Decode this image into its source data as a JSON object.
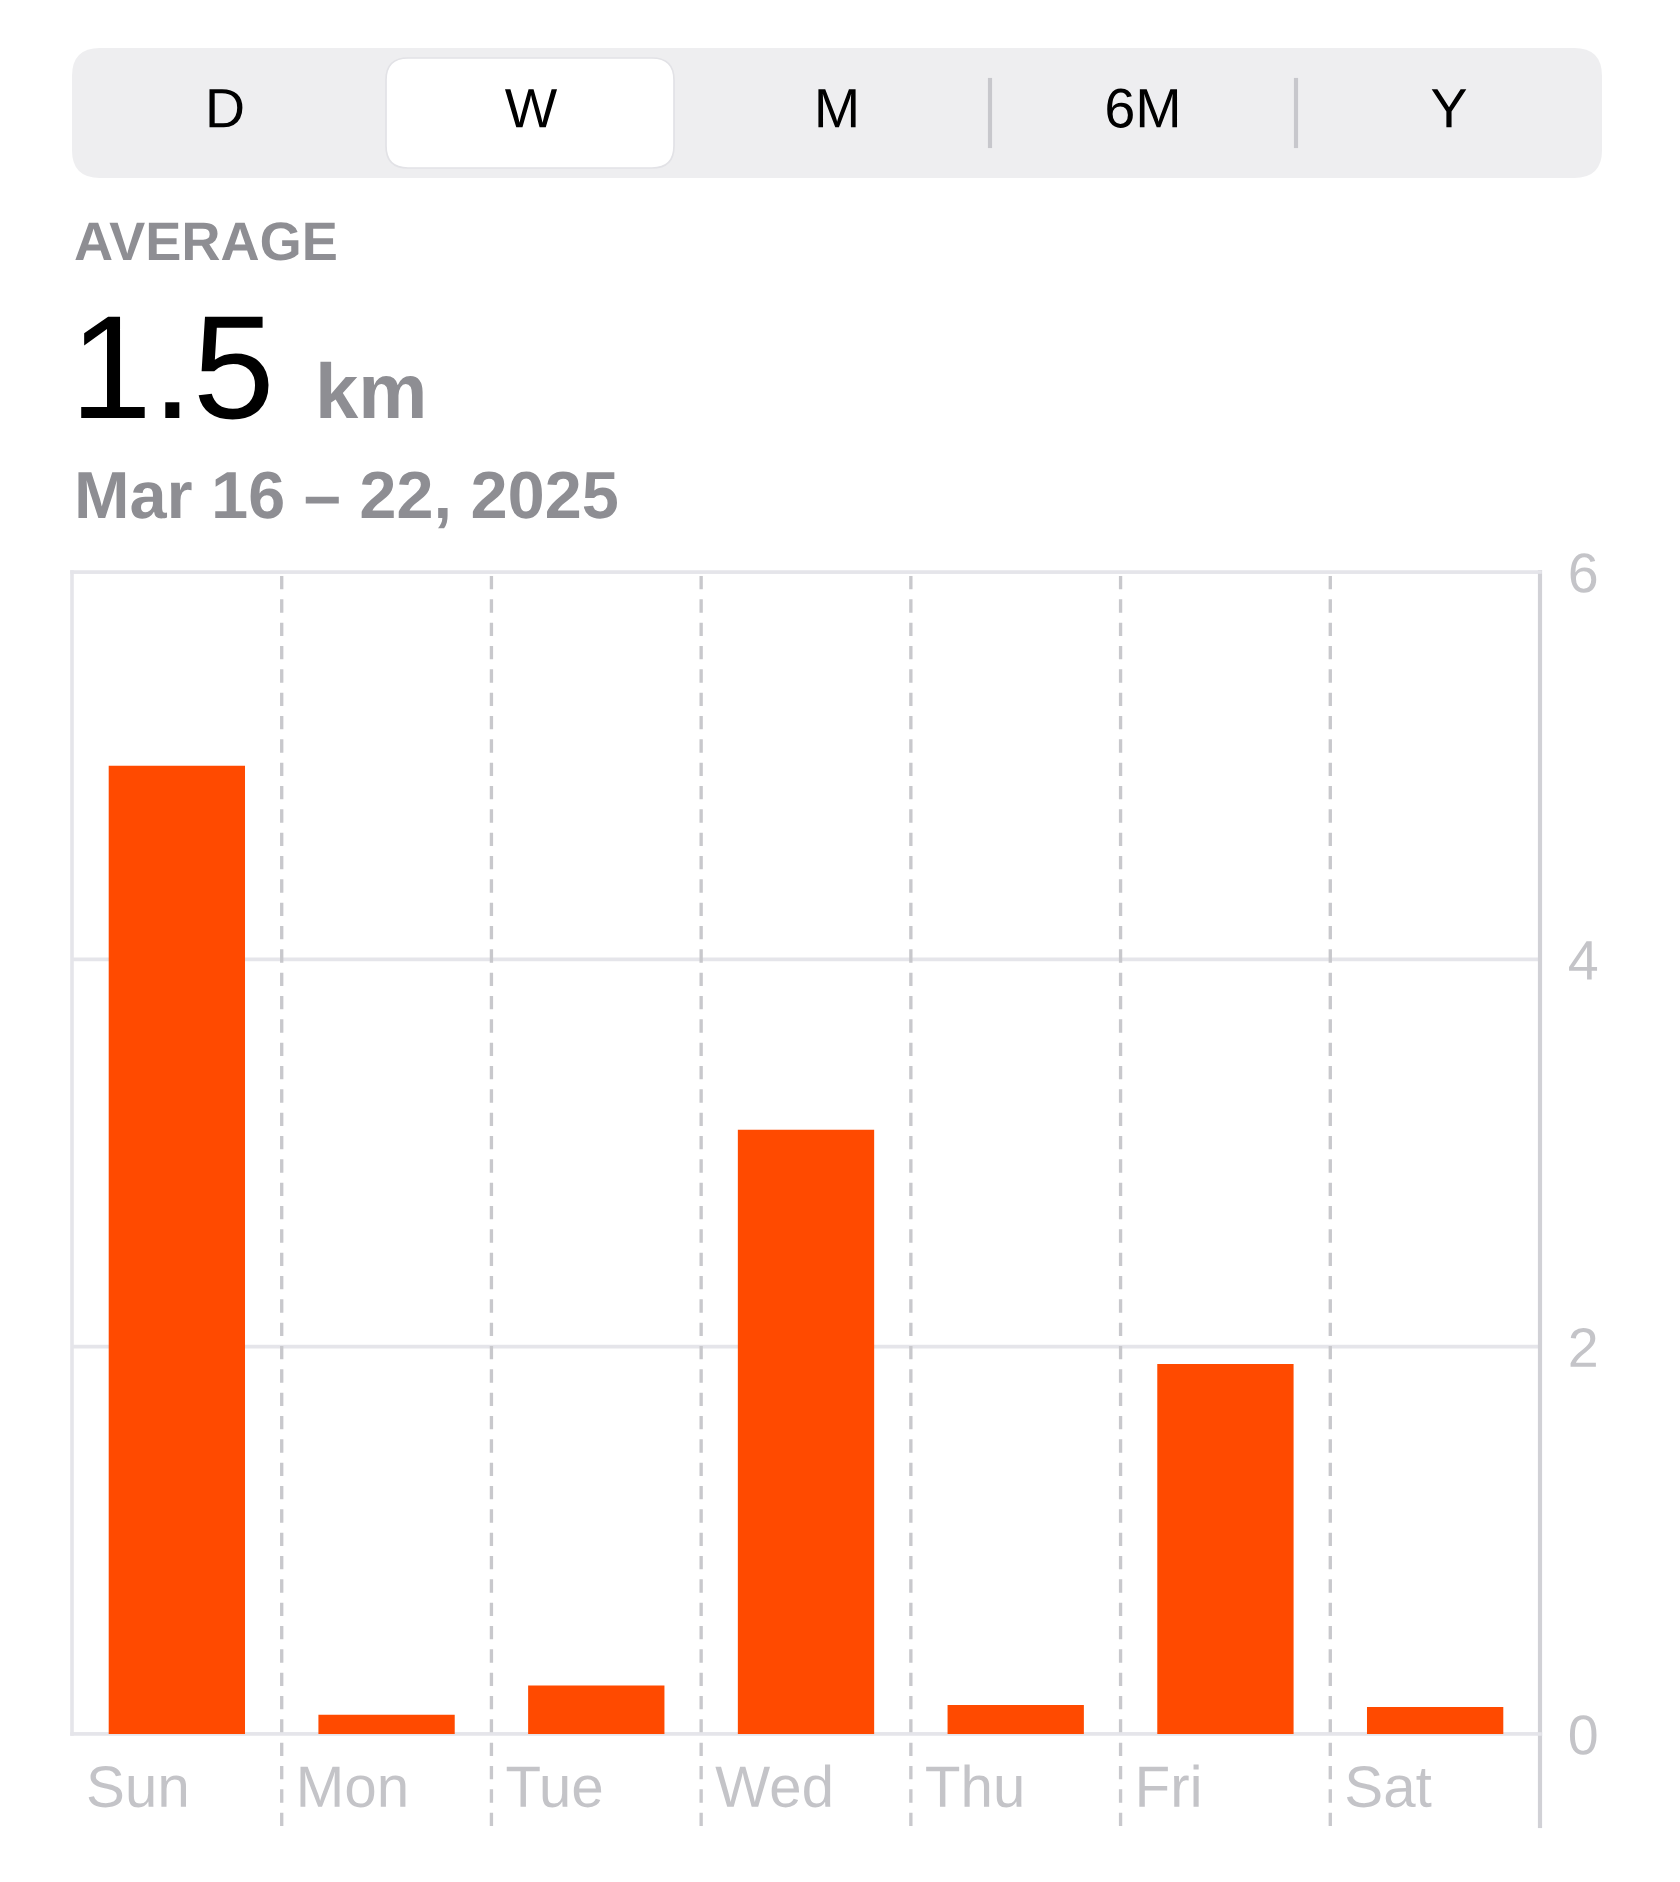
{
  "chart_data": [
    {
      "type": "other",
      "annotations": [
        "D",
        "W",
        "M",
        "6M",
        "Y"
      ]
    },
    {
      "type": "bar",
      "annotations": [
        "AVERAGE"
      ],
      "title": "1.5 km",
      "subtitle": "Mar 16 – 22, 2025",
      "categories": [
        "Sun",
        "Mon",
        "Tue",
        "Wed",
        "Thu",
        "Fri",
        "Sat"
      ],
      "values": [
        5.0,
        0.1,
        0.25,
        3.12,
        0.15,
        1.91,
        0.14
      ],
      "color": "#ff4a00",
      "ylim": [
        0,
        6
      ],
      "yticks": [
        0,
        2,
        4,
        6
      ],
      "grid": true
    }
  ]
}
